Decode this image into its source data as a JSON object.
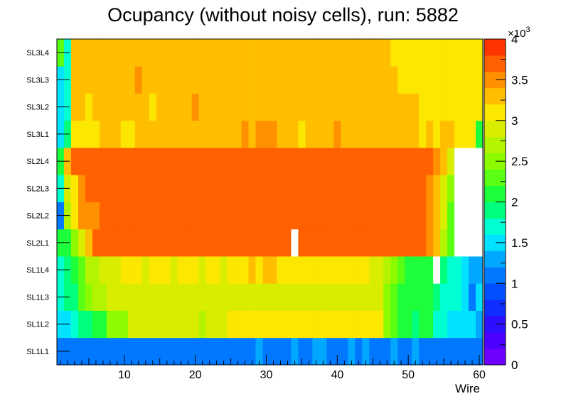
{
  "chart_data": {
    "type": "heatmap",
    "title": "Ocupancy (without noisy cells), run: 5882",
    "xlabel": "Wire",
    "ylabel": "",
    "xlim": [
      0.5,
      60.5
    ],
    "x_ticks": [
      "10",
      "20",
      "30",
      "40",
      "50",
      "60"
    ],
    "y_categories": [
      "SL1L1",
      "SL1L2",
      "SL1L3",
      "SL1L4",
      "SL2L1",
      "SL2L2",
      "SL2L3",
      "SL2L4",
      "SL3L1",
      "SL3L2",
      "SL3L3",
      "SL3L4"
    ],
    "colorbar": {
      "min": 0,
      "max": 4000,
      "multiplier_label": "×10",
      "multiplier_exponent": "3",
      "tick_labels": [
        "0",
        "0.5",
        "1",
        "1.5",
        "2",
        "2.5",
        "3",
        "3.5",
        "4"
      ]
    },
    "values_unit": "counts (×10^3)",
    "values": [
      [
        1.0,
        1.0,
        1.0,
        1.0,
        1.0,
        1.0,
        1.0,
        1.0,
        1.0,
        1.0,
        1.0,
        1.0,
        1.0,
        1.0,
        1.0,
        1.0,
        1.0,
        1.0,
        1.0,
        1.0,
        1.0,
        1.0,
        1.0,
        1.0,
        1.0,
        1.0,
        1.0,
        1.0,
        1.2,
        1.0,
        1.0,
        1.0,
        1.0,
        1.2,
        1.0,
        1.0,
        1.2,
        1.2,
        1.0,
        1.0,
        1.0,
        1.2,
        1.0,
        1.2,
        1.0,
        1.0,
        1.0,
        1.2,
        1.0,
        1.0,
        1.2,
        1.0,
        1.0,
        1.0,
        1.0,
        1.0,
        1.0,
        1.0,
        1.0,
        1.0
      ],
      [
        1.4,
        1.5,
        1.7,
        1.9,
        1.9,
        2.1,
        2.1,
        2.5,
        2.5,
        2.5,
        2.9,
        2.9,
        2.9,
        2.8,
        2.8,
        2.9,
        2.9,
        2.8,
        2.9,
        2.9,
        2.7,
        2.9,
        2.9,
        2.9,
        3.0,
        3.0,
        3.0,
        3.0,
        3.0,
        3.0,
        3.0,
        3.0,
        3.0,
        3.0,
        3.0,
        3.0,
        3.0,
        3.0,
        3.0,
        3.0,
        3.0,
        3.0,
        3.0,
        3.0,
        3.0,
        3.0,
        2.5,
        2.3,
        2.1,
        2.0,
        1.8,
        2.1,
        2.1,
        1.7,
        1.7,
        1.5,
        1.5,
        1.5,
        1.4,
        1.3
      ],
      [
        1.7,
        1.8,
        1.9,
        2.2,
        2.4,
        2.6,
        2.7,
        2.9,
        2.9,
        2.9,
        2.8,
        2.9,
        2.9,
        2.9,
        2.9,
        2.8,
        2.9,
        2.9,
        2.9,
        2.9,
        2.8,
        2.9,
        2.9,
        2.9,
        2.9,
        2.9,
        2.8,
        2.9,
        2.9,
        2.9,
        2.9,
        2.9,
        2.9,
        2.9,
        2.9,
        2.9,
        2.9,
        2.9,
        2.9,
        2.9,
        2.9,
        2.9,
        2.9,
        2.9,
        2.9,
        2.9,
        2.5,
        2.3,
        2.1,
        2.0,
        2.0,
        2.0,
        2.0,
        1.8,
        1.7,
        1.7,
        1.6,
        1.5,
        1.1,
        1.5
      ],
      [
        1.7,
        1.9,
        2.1,
        2.3,
        2.6,
        2.7,
        2.8,
        2.9,
        2.8,
        3.0,
        3.0,
        3.1,
        2.9,
        3.0,
        3.0,
        3.0,
        2.9,
        3.0,
        3.0,
        3.0,
        2.9,
        3.0,
        3.0,
        2.9,
        3.0,
        3.0,
        3.0,
        3.2,
        3.0,
        3.2,
        3.2,
        3.0,
        3.1,
        3.0,
        3.0,
        3.0,
        3.0,
        3.0,
        3.1,
        3.0,
        3.0,
        3.0,
        3.0,
        3.0,
        2.9,
        2.9,
        2.6,
        2.4,
        2.3,
        2.1,
        2.0,
        2.0,
        2.0,
        0,
        1.9,
        1.7,
        1.6,
        1.5,
        1.3,
        1.3
      ],
      [
        2.1,
        2.1,
        2.5,
        2.8,
        3.3,
        3.7,
        3.7,
        3.7,
        3.7,
        3.7,
        3.7,
        3.7,
        3.7,
        3.7,
        3.7,
        3.7,
        3.7,
        3.7,
        3.7,
        3.7,
        3.7,
        3.7,
        3.7,
        3.7,
        3.7,
        3.7,
        3.7,
        3.7,
        3.7,
        3.7,
        3.7,
        3.7,
        3.7,
        0,
        3.7,
        3.7,
        3.7,
        3.7,
        3.7,
        3.7,
        3.7,
        3.7,
        3.7,
        3.7,
        3.7,
        3.7,
        3.7,
        3.7,
        3.7,
        3.7,
        3.7,
        3.7,
        3.5,
        3.2,
        2.7,
        2.3,
        0,
        0,
        0,
        0
      ],
      [
        1.1,
        2.6,
        3.0,
        3.4,
        3.5,
        3.5,
        3.7,
        3.7,
        3.7,
        3.7,
        3.7,
        3.7,
        3.7,
        3.7,
        3.7,
        3.7,
        3.7,
        3.7,
        3.7,
        3.7,
        3.7,
        3.7,
        3.7,
        3.7,
        3.7,
        3.7,
        3.7,
        3.7,
        3.7,
        3.7,
        3.7,
        3.7,
        3.7,
        3.7,
        3.7,
        3.7,
        3.7,
        3.7,
        3.7,
        3.7,
        3.7,
        3.7,
        3.7,
        3.7,
        3.7,
        3.7,
        3.7,
        3.7,
        3.7,
        3.7,
        3.7,
        3.7,
        3.5,
        3.2,
        2.8,
        2.3,
        0,
        0,
        0,
        0
      ],
      [
        1.7,
        2.8,
        3.1,
        3.5,
        3.6,
        3.6,
        3.7,
        3.7,
        3.7,
        3.7,
        3.7,
        3.7,
        3.7,
        3.7,
        3.7,
        3.7,
        3.7,
        3.7,
        3.7,
        3.7,
        3.7,
        3.7,
        3.7,
        3.7,
        3.7,
        3.7,
        3.7,
        3.7,
        3.7,
        3.7,
        3.7,
        3.7,
        3.7,
        3.7,
        3.7,
        3.7,
        3.7,
        3.7,
        3.7,
        3.7,
        3.7,
        3.7,
        3.7,
        3.7,
        3.7,
        3.7,
        3.7,
        3.7,
        3.7,
        3.7,
        3.7,
        3.7,
        3.5,
        3.2,
        2.8,
        2.4,
        0,
        0,
        0,
        0
      ],
      [
        2.0,
        3.3,
        3.6,
        3.7,
        3.7,
        3.7,
        3.7,
        3.7,
        3.7,
        3.7,
        3.7,
        3.7,
        3.7,
        3.7,
        3.7,
        3.7,
        3.7,
        3.7,
        3.7,
        3.7,
        3.7,
        3.7,
        3.7,
        3.7,
        3.7,
        3.7,
        3.7,
        3.7,
        3.7,
        3.7,
        3.7,
        3.7,
        3.7,
        3.7,
        3.7,
        3.7,
        3.7,
        3.7,
        3.7,
        3.7,
        3.7,
        3.7,
        3.7,
        3.7,
        3.7,
        3.7,
        3.7,
        3.7,
        3.7,
        3.7,
        3.7,
        3.7,
        3.7,
        3.5,
        3.3,
        2.8,
        0,
        0,
        0,
        0
      ],
      [
        1.5,
        1.9,
        3.1,
        3.0,
        3.0,
        3.0,
        3.2,
        3.2,
        3.3,
        3.0,
        3.0,
        3.2,
        3.2,
        3.3,
        3.2,
        3.2,
        3.3,
        3.2,
        3.3,
        3.2,
        3.3,
        3.2,
        3.2,
        3.3,
        3.3,
        3.3,
        3.5,
        3.3,
        3.5,
        3.5,
        3.5,
        3.3,
        3.3,
        3.3,
        3.0,
        3.3,
        3.3,
        3.3,
        3.3,
        3.5,
        3.3,
        3.3,
        3.3,
        3.3,
        3.3,
        3.3,
        3.3,
        3.2,
        3.3,
        3.3,
        3.3,
        3.0,
        3.2,
        3.0,
        3.3,
        3.2,
        3.0,
        3.0,
        3.0,
        2.0
      ],
      [
        1.4,
        1.6,
        3.3,
        3.3,
        3.0,
        3.2,
        3.2,
        3.3,
        3.3,
        3.3,
        3.2,
        3.3,
        3.3,
        3.0,
        3.3,
        3.3,
        3.3,
        3.3,
        3.3,
        3.5,
        3.3,
        3.3,
        3.3,
        3.3,
        3.3,
        3.3,
        3.3,
        3.3,
        3.3,
        3.3,
        3.3,
        3.3,
        3.3,
        3.3,
        3.3,
        3.3,
        3.3,
        3.3,
        3.3,
        3.3,
        3.3,
        3.3,
        3.3,
        3.3,
        3.3,
        3.3,
        3.3,
        3.3,
        3.3,
        3.3,
        3.3,
        3.0,
        3.0,
        3.0,
        3.0,
        3.0,
        3.0,
        3.0,
        3.0,
        3.0
      ],
      [
        1.5,
        1.7,
        3.3,
        3.3,
        3.2,
        3.3,
        3.3,
        3.3,
        3.3,
        3.3,
        3.3,
        3.5,
        3.3,
        3.3,
        3.3,
        3.3,
        3.3,
        3.3,
        3.3,
        3.3,
        3.3,
        3.3,
        3.3,
        3.3,
        3.3,
        3.3,
        3.3,
        3.3,
        3.3,
        3.3,
        3.3,
        3.3,
        3.3,
        3.3,
        3.3,
        3.3,
        3.3,
        3.3,
        3.3,
        3.3,
        3.3,
        3.3,
        3.3,
        3.3,
        3.3,
        3.3,
        3.3,
        3.3,
        3.0,
        3.0,
        3.0,
        3.0,
        3.0,
        3.0,
        3.0,
        3.0,
        3.0,
        3.0,
        3.0,
        3.0
      ],
      [
        2.2,
        1.6,
        3.3,
        3.3,
        3.3,
        3.3,
        3.3,
        3.3,
        3.3,
        3.3,
        3.3,
        3.3,
        3.3,
        3.3,
        3.3,
        3.3,
        3.3,
        3.3,
        3.3,
        3.3,
        3.3,
        3.3,
        3.3,
        3.3,
        3.3,
        3.3,
        3.3,
        3.3,
        3.3,
        3.3,
        3.3,
        3.3,
        3.3,
        3.3,
        3.3,
        3.3,
        3.3,
        3.3,
        3.3,
        3.3,
        3.3,
        3.3,
        3.3,
        3.3,
        3.3,
        3.3,
        3.3,
        3.0,
        3.0,
        3.0,
        3.0,
        3.0,
        3.0,
        3.0,
        3.0,
        3.0,
        3.0,
        3.0,
        3.0,
        3.0
      ]
    ]
  }
}
